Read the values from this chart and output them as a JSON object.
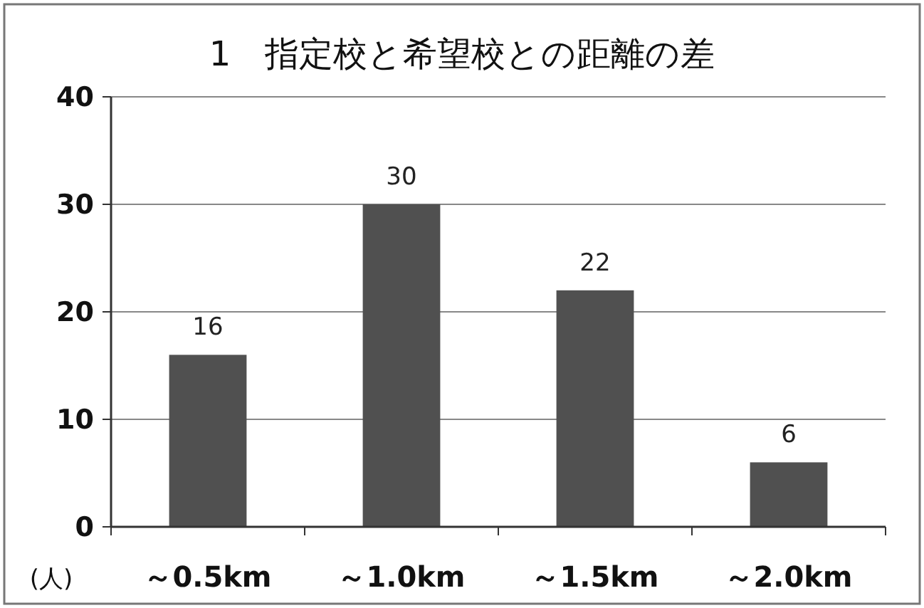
{
  "chart_data": {
    "type": "bar",
    "title": "1　指定校と希望校との距離の差",
    "ylabel": "(人)",
    "categories": [
      "～0.5km",
      "～1.0km",
      "～1.5km",
      "～2.0km"
    ],
    "values": [
      16,
      30,
      22,
      6
    ],
    "color": "#505050",
    "ylim": [
      0,
      40
    ],
    "yticks": [
      0,
      10,
      20,
      30,
      40
    ],
    "grid": "y",
    "data_labels": true
  }
}
